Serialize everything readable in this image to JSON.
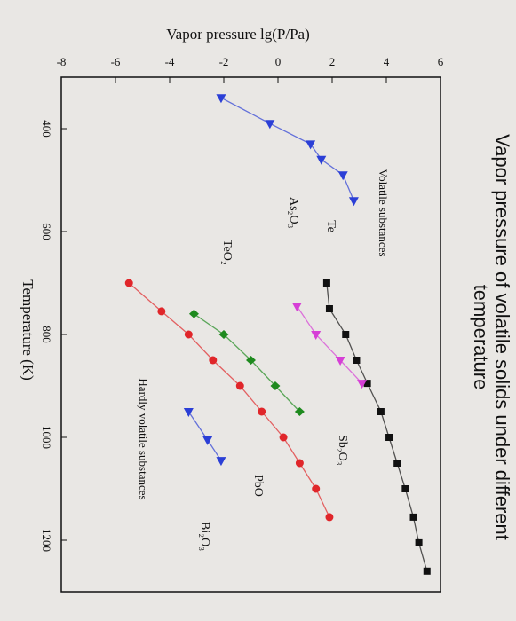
{
  "chart_data": {
    "type": "line",
    "title": "Vapor pressure of volatile solids under different temperature",
    "x_label": "Temperature (K)",
    "y_label": "Vapor pressure lg(P/Pa)",
    "xlim": [
      300,
      1300
    ],
    "xticks": [
      400,
      600,
      800,
      1000,
      1200
    ],
    "ylim": [
      -8,
      6
    ],
    "yticks": [
      -8,
      -6,
      -4,
      -2,
      0,
      2,
      4,
      6
    ],
    "annotations": [
      "Volatile substances",
      "Hardly volatile substances"
    ],
    "series": [
      {
        "name": "As₂O₃",
        "color": "#2b3fd6",
        "marker": "triangle",
        "x": [
          340,
          390,
          430,
          460,
          490,
          540
        ],
        "values": [
          -2.1,
          -0.3,
          1.2,
          1.6,
          2.4,
          2.8
        ]
      },
      {
        "name": "Te",
        "color": "#111111",
        "marker": "square",
        "x": [
          700,
          750,
          800,
          850,
          895,
          950,
          1000,
          1050,
          1100,
          1155,
          1205,
          1260
        ],
        "values": [
          1.8,
          1.9,
          2.5,
          2.9,
          3.3,
          3.8,
          4.1,
          4.4,
          4.7,
          5.0,
          5.2,
          5.5
        ]
      },
      {
        "name": "Sb₂O₃",
        "color": "#d63fd6",
        "marker": "triangle",
        "x": [
          745,
          800,
          850,
          895
        ],
        "values": [
          0.7,
          1.4,
          2.3,
          3.1
        ]
      },
      {
        "name": "TeO₂",
        "color": "#1e8a1e",
        "marker": "diamond",
        "x": [
          760,
          800,
          850,
          900,
          950
        ],
        "values": [
          -3.1,
          -2.0,
          -1.0,
          -0.1,
          0.8
        ]
      },
      {
        "name": "PbO",
        "color": "#e0262a",
        "marker": "circle",
        "x": [
          700,
          755,
          800,
          850,
          900,
          950,
          1000,
          1050,
          1100,
          1155
        ],
        "values": [
          -5.5,
          -4.3,
          -3.3,
          -2.4,
          -1.4,
          -0.6,
          0.2,
          0.8,
          1.4,
          1.9
        ]
      },
      {
        "name": "Bi₂O₃",
        "color": "#2b3fd6",
        "marker": "triangle",
        "x": [
          950,
          1005,
          1045
        ],
        "values": [
          -3.3,
          -2.6,
          -2.1
        ]
      }
    ]
  }
}
